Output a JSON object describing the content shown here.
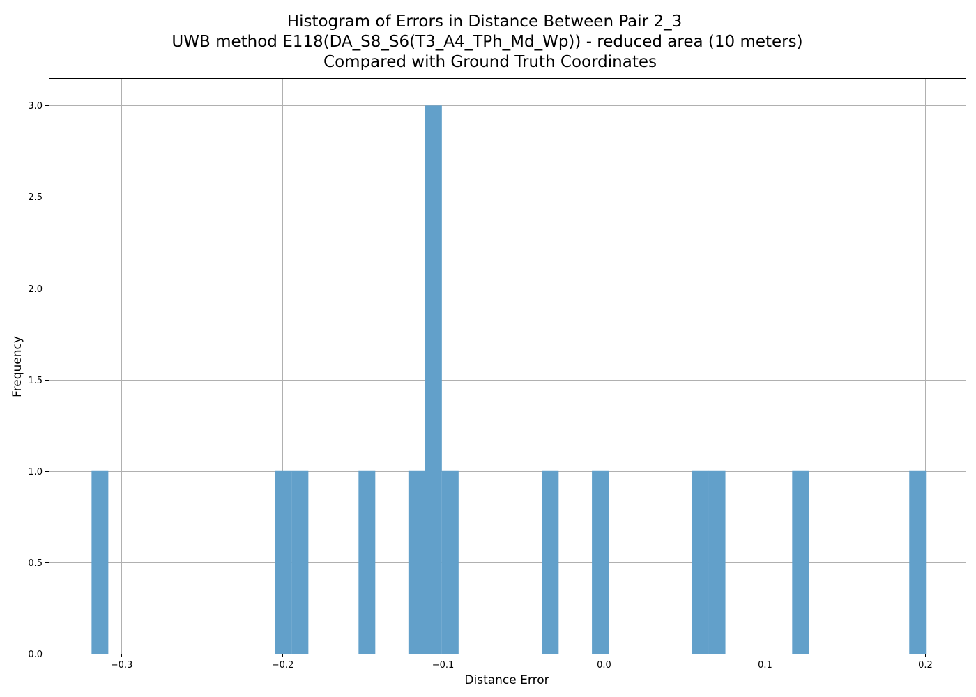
{
  "chart_data": {
    "type": "bar",
    "title_lines": [
      "Histogram of Errors in Distance Between Pair 2_3",
      "UWB method E118(DA_S8_S6(T3_A4_TPh_Md_Wp)) - reduced area (10 meters)",
      "Compared with Ground Truth Coordinates"
    ],
    "xlabel": "Distance Error",
    "ylabel": "Frequency",
    "xlim": [
      -0.345,
      0.225
    ],
    "ylim": [
      0,
      3.15
    ],
    "x_ticks": [
      -0.3,
      -0.2,
      -0.1,
      0.0,
      0.1,
      0.2
    ],
    "x_tick_labels": [
      "−0.3",
      "−0.2",
      "−0.1",
      "0.0",
      "0.1",
      "0.2"
    ],
    "y_ticks": [
      0.0,
      0.5,
      1.0,
      1.5,
      2.0,
      2.5,
      3.0
    ],
    "y_tick_labels": [
      "0.0",
      "0.5",
      "1.0",
      "1.5",
      "2.0",
      "2.5",
      "3.0"
    ],
    "grid": true,
    "bar_color": "#62a0ca",
    "bin_width": 0.0104,
    "bins": [
      {
        "x": -0.3184,
        "count": 1
      },
      {
        "x": -0.2044,
        "count": 1
      },
      {
        "x": -0.194,
        "count": 1
      },
      {
        "x": -0.1524,
        "count": 1
      },
      {
        "x": -0.1214,
        "count": 1
      },
      {
        "x": -0.111,
        "count": 3
      },
      {
        "x": -0.1006,
        "count": 1
      },
      {
        "x": -0.0384,
        "count": 1
      },
      {
        "x": -0.0073,
        "count": 1
      },
      {
        "x": 0.055,
        "count": 1
      },
      {
        "x": 0.0653,
        "count": 1
      },
      {
        "x": 0.1172,
        "count": 1
      },
      {
        "x": 0.19,
        "count": 1
      }
    ]
  }
}
